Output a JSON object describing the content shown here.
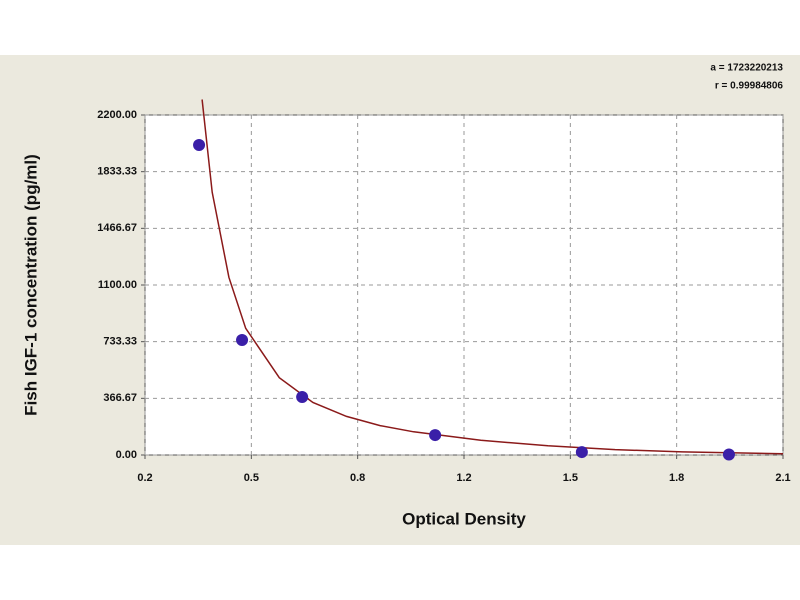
{
  "chart_data": {
    "type": "scatter",
    "annotations": [
      "a = 1723220213",
      "r = 0.99984806"
    ],
    "x_label": "Optical Density",
    "y_label": "Fish IGF-1 concentration (pg/ml)",
    "x": [
      0.361,
      0.489,
      0.668,
      1.064,
      1.501,
      1.939
    ],
    "values": [
      2006,
      744,
      375,
      129,
      19,
      3
    ],
    "color": "#3a1fa8",
    "curve": {
      "color": "#8b1a1a",
      "x": [
        0.37,
        0.4,
        0.45,
        0.5,
        0.6,
        0.7,
        0.8,
        0.9,
        1.0,
        1.2,
        1.4,
        1.6,
        1.8,
        2.1
      ],
      "y": [
        2300,
        1700,
        1150,
        820,
        500,
        340,
        250,
        190,
        150,
        95,
        60,
        35,
        20,
        8
      ]
    },
    "xlim": [
      0.2,
      2.1
    ],
    "xticks": [
      {
        "value": 0.2,
        "label": "0.2"
      },
      {
        "value": 0.5167,
        "label": "0.5"
      },
      {
        "value": 0.8333,
        "label": "0.8"
      },
      {
        "value": 1.15,
        "label": "1.2"
      },
      {
        "value": 1.4667,
        "label": "1.5"
      },
      {
        "value": 1.7833,
        "label": "1.8"
      },
      {
        "value": 2.1,
        "label": "2.1"
      }
    ],
    "ylim": [
      0,
      2200
    ],
    "yticks": [
      {
        "value": 0,
        "label": "0.00"
      },
      {
        "value": 366.67,
        "label": "366.67"
      },
      {
        "value": 733.33,
        "label": "733.33"
      },
      {
        "value": 1100,
        "label": "1100.00"
      },
      {
        "value": 1466.67,
        "label": "1466.67"
      },
      {
        "value": 1833.33,
        "label": "1833.33"
      },
      {
        "value": 2200,
        "label": "2200.00"
      }
    ],
    "grid": true
  }
}
